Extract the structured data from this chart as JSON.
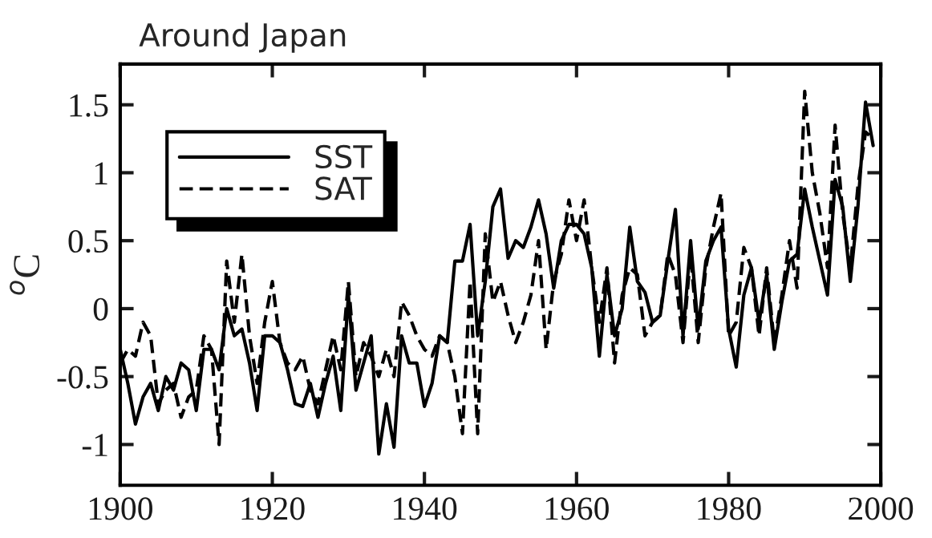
{
  "chart_data": {
    "type": "line",
    "title": "Around Japan",
    "ylabel": "$^{o}$C",
    "x": [
      1900,
      1901,
      1902,
      1903,
      1904,
      1905,
      1906,
      1907,
      1908,
      1909,
      1910,
      1911,
      1912,
      1913,
      1914,
      1915,
      1916,
      1917,
      1918,
      1919,
      1920,
      1921,
      1922,
      1923,
      1924,
      1925,
      1926,
      1927,
      1928,
      1929,
      1930,
      1931,
      1932,
      1933,
      1934,
      1935,
      1936,
      1937,
      1938,
      1939,
      1940,
      1941,
      1942,
      1943,
      1944,
      1945,
      1946,
      1947,
      1948,
      1949,
      1950,
      1951,
      1952,
      1953,
      1954,
      1955,
      1956,
      1957,
      1958,
      1959,
      1960,
      1961,
      1962,
      1963,
      1964,
      1965,
      1966,
      1967,
      1968,
      1969,
      1970,
      1971,
      1972,
      1973,
      1974,
      1975,
      1976,
      1977,
      1978,
      1979,
      1980,
      1981,
      1982,
      1983,
      1984,
      1985,
      1986,
      1987,
      1988,
      1989,
      1990,
      1991,
      1992,
      1993,
      1994,
      1995,
      1996,
      1997,
      1998,
      1999
    ],
    "series": [
      {
        "name": "SST",
        "color": "#000000",
        "line_style": "solid",
        "values": [
          -0.3,
          -0.55,
          -0.85,
          -0.65,
          -0.55,
          -0.75,
          -0.5,
          -0.6,
          -0.4,
          -0.45,
          -0.75,
          -0.3,
          -0.3,
          -0.45,
          0.0,
          -0.2,
          -0.15,
          -0.4,
          -0.75,
          -0.2,
          -0.2,
          -0.25,
          -0.45,
          -0.7,
          -0.72,
          -0.55,
          -0.8,
          -0.55,
          -0.35,
          -0.75,
          0.1,
          -0.6,
          -0.4,
          -0.2,
          -1.07,
          -0.7,
          -1.02,
          -0.2,
          -0.4,
          -0.4,
          -0.72,
          -0.55,
          -0.2,
          -0.25,
          0.35,
          0.35,
          0.62,
          -0.2,
          0.2,
          0.75,
          0.88,
          0.37,
          0.5,
          0.45,
          0.6,
          0.8,
          0.55,
          0.15,
          0.5,
          0.62,
          0.62,
          0.55,
          0.3,
          -0.35,
          0.25,
          -0.2,
          0.0,
          0.6,
          0.2,
          0.12,
          -0.1,
          -0.05,
          0.35,
          0.73,
          -0.2,
          0.5,
          -0.15,
          0.35,
          0.5,
          0.6,
          -0.15,
          -0.43,
          0.1,
          0.3,
          -0.1,
          0.25,
          -0.3,
          0.05,
          0.35,
          0.4,
          0.88,
          0.6,
          0.35,
          0.1,
          0.95,
          0.75,
          0.2,
          0.75,
          1.52,
          1.2
        ]
      },
      {
        "name": "SAT",
        "color": "#000000",
        "line_style": "dashed",
        "values": [
          -0.4,
          -0.3,
          -0.35,
          -0.1,
          -0.2,
          -0.7,
          -0.6,
          -0.55,
          -0.8,
          -0.65,
          -0.6,
          -0.2,
          -0.3,
          -1.0,
          0.35,
          -0.1,
          0.4,
          -0.2,
          -0.55,
          -0.1,
          0.2,
          -0.25,
          -0.4,
          -0.45,
          -0.35,
          -0.6,
          -0.7,
          -0.45,
          -0.2,
          -0.45,
          0.2,
          -0.5,
          -0.25,
          -0.35,
          -0.5,
          -0.3,
          -0.5,
          0.05,
          -0.05,
          -0.2,
          -0.3,
          -0.35,
          -0.2,
          -0.25,
          -0.5,
          -0.92,
          0.2,
          -0.92,
          0.55,
          0.05,
          0.2,
          -0.05,
          -0.25,
          -0.1,
          0.1,
          0.5,
          -0.3,
          0.2,
          0.4,
          0.8,
          0.5,
          0.8,
          0.3,
          -0.1,
          0.3,
          -0.4,
          0.1,
          0.3,
          0.25,
          -0.2,
          -0.1,
          -0.05,
          0.4,
          0.25,
          -0.25,
          0.4,
          -0.25,
          0.3,
          0.6,
          0.85,
          -0.2,
          -0.1,
          0.45,
          0.3,
          -0.2,
          0.3,
          -0.25,
          0.1,
          0.5,
          0.15,
          1.6,
          1.0,
          0.7,
          0.3,
          1.35,
          0.7,
          0.3,
          0.9,
          1.3,
          1.25
        ]
      }
    ],
    "xlim": [
      1900,
      2000
    ],
    "xticks": [
      1900,
      1920,
      1940,
      1960,
      1980,
      2000
    ],
    "ylim": [
      -1.3,
      1.8
    ],
    "yticks": [
      -1,
      -0.5,
      0,
      0.5,
      1,
      1.5
    ],
    "grid": false,
    "legend": "top left",
    "marker": "none"
  }
}
